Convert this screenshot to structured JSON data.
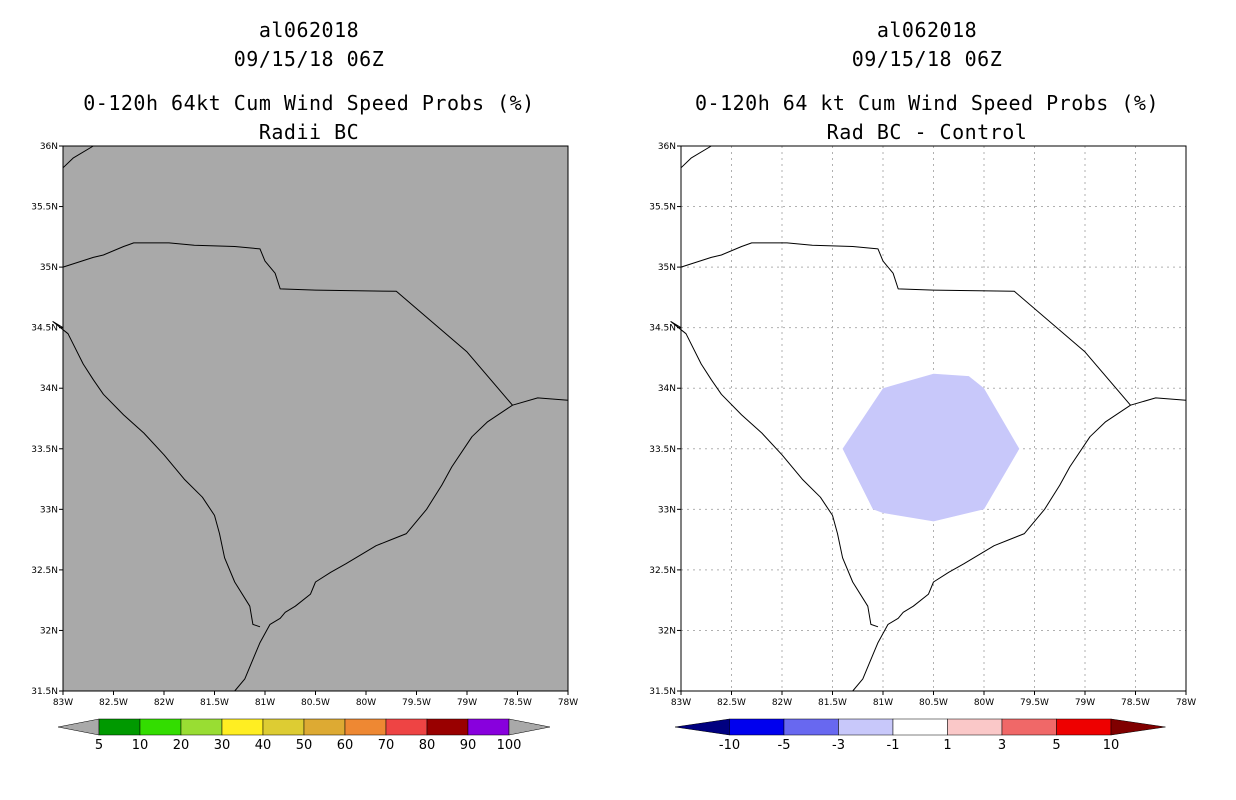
{
  "left": {
    "storm_id": "al062018",
    "datetime": "09/15/18 06Z",
    "title": "0-120h 64kt Cum Wind Speed Probs (%)",
    "subtitle": "Radii BC",
    "colors": {
      "background": "#a9a9a9"
    },
    "colorbar": {
      "colors": [
        "#a9a9a9",
        "#009900",
        "#33dd00",
        "#99dd33",
        "#ffee22",
        "#ddcc33",
        "#ddaa33",
        "#ee8833",
        "#ee4444",
        "#990000",
        "#8800dd",
        "#a9a9a9"
      ],
      "labels": [
        "5",
        "10",
        "20",
        "30",
        "40",
        "50",
        "60",
        "70",
        "80",
        "90",
        "100"
      ]
    }
  },
  "right": {
    "storm_id": "al062018",
    "datetime": "09/15/18 06Z",
    "title": "0-120h 64 kt Cum Wind Speed Probs (%)",
    "subtitle": "Rad BC - Control",
    "colors": {
      "background": "#ffffff",
      "decrease_fill": "#c8c8fa"
    },
    "decrease_region_lonlat": [
      [
        -81.4,
        33.5
      ],
      [
        -81.0,
        34.0
      ],
      [
        -80.5,
        34.12
      ],
      [
        -80.15,
        34.1
      ],
      [
        -80.0,
        34.0
      ],
      [
        -79.65,
        33.5
      ],
      [
        -80.0,
        33.0
      ],
      [
        -80.5,
        32.9
      ],
      [
        -81.0,
        32.97
      ],
      [
        -81.1,
        33.0
      ]
    ],
    "colorbar": {
      "colors": [
        "#000080",
        "#0000ee",
        "#6868f0",
        "#c8c8fa",
        "#ffffff",
        "#fac8c8",
        "#f06868",
        "#ee0000",
        "#800000"
      ],
      "labels": [
        "-10",
        "-5",
        "-3",
        "-1",
        "1",
        "3",
        "5",
        "10"
      ]
    }
  },
  "axes": {
    "lon_labels": [
      "83W",
      "82.5W",
      "82W",
      "81.5W",
      "81W",
      "80.5W",
      "80W",
      "79.5W",
      "79W",
      "78.5W",
      "78W"
    ],
    "lat_labels": [
      "31.5N",
      "32N",
      "32.5N",
      "33N",
      "33.5N",
      "34N",
      "34.5N",
      "35N",
      "35.5N",
      "36N"
    ],
    "lon_range": [
      -83,
      -78
    ],
    "lat_range": [
      31.5,
      36
    ]
  },
  "boundaries_lonlat": {
    "sc_nc_border": [
      [
        -83.0,
        35.0
      ],
      [
        -82.7,
        35.08
      ],
      [
        -82.6,
        35.1
      ],
      [
        -82.4,
        35.17
      ],
      [
        -82.3,
        35.2
      ],
      [
        -81.95,
        35.2
      ],
      [
        -81.7,
        35.18
      ],
      [
        -81.3,
        35.17
      ],
      [
        -81.05,
        35.15
      ],
      [
        -81.0,
        35.05
      ],
      [
        -80.9,
        34.95
      ],
      [
        -80.85,
        34.82
      ],
      [
        -80.5,
        34.81
      ],
      [
        -79.7,
        34.8
      ],
      [
        -79.0,
        34.3
      ],
      [
        -78.55,
        33.86
      ]
    ],
    "coast": [
      [
        -78.55,
        33.86
      ],
      [
        -78.8,
        33.72
      ],
      [
        -78.95,
        33.6
      ],
      [
        -79.15,
        33.35
      ],
      [
        -79.25,
        33.2
      ],
      [
        -79.4,
        33.0
      ],
      [
        -79.6,
        32.8
      ],
      [
        -79.75,
        32.75
      ],
      [
        -79.9,
        32.7
      ],
      [
        -80.2,
        32.55
      ],
      [
        -80.35,
        32.48
      ],
      [
        -80.5,
        32.4
      ],
      [
        -80.55,
        32.3
      ],
      [
        -80.7,
        32.2
      ],
      [
        -80.8,
        32.15
      ],
      [
        -80.85,
        32.1
      ],
      [
        -80.95,
        32.05
      ],
      [
        -81.05,
        31.9
      ],
      [
        -81.1,
        31.8
      ],
      [
        -81.2,
        31.6
      ],
      [
        -81.3,
        31.5
      ]
    ],
    "sc_ga_border": [
      [
        -83.0,
        34.5
      ],
      [
        -83.1,
        34.55
      ],
      [
        -82.95,
        34.45
      ],
      [
        -82.8,
        34.2
      ],
      [
        -82.7,
        34.07
      ],
      [
        -82.6,
        33.95
      ],
      [
        -82.4,
        33.78
      ],
      [
        -82.2,
        33.63
      ],
      [
        -82.0,
        33.45
      ],
      [
        -81.9,
        33.35
      ],
      [
        -81.8,
        33.25
      ],
      [
        -81.62,
        33.1
      ],
      [
        -81.5,
        32.95
      ],
      [
        -81.45,
        32.8
      ],
      [
        -81.4,
        32.6
      ],
      [
        -81.3,
        32.4
      ],
      [
        -81.15,
        32.2
      ],
      [
        -81.12,
        32.05
      ],
      [
        -81.05,
        32.03
      ]
    ],
    "nc_coast": [
      [
        -78.55,
        33.86
      ],
      [
        -78.3,
        33.92
      ],
      [
        -78.0,
        33.9
      ]
    ],
    "topleft_curve": [
      [
        -83.0,
        35.82
      ],
      [
        -82.9,
        35.9
      ],
      [
        -82.7,
        36.0
      ]
    ]
  }
}
